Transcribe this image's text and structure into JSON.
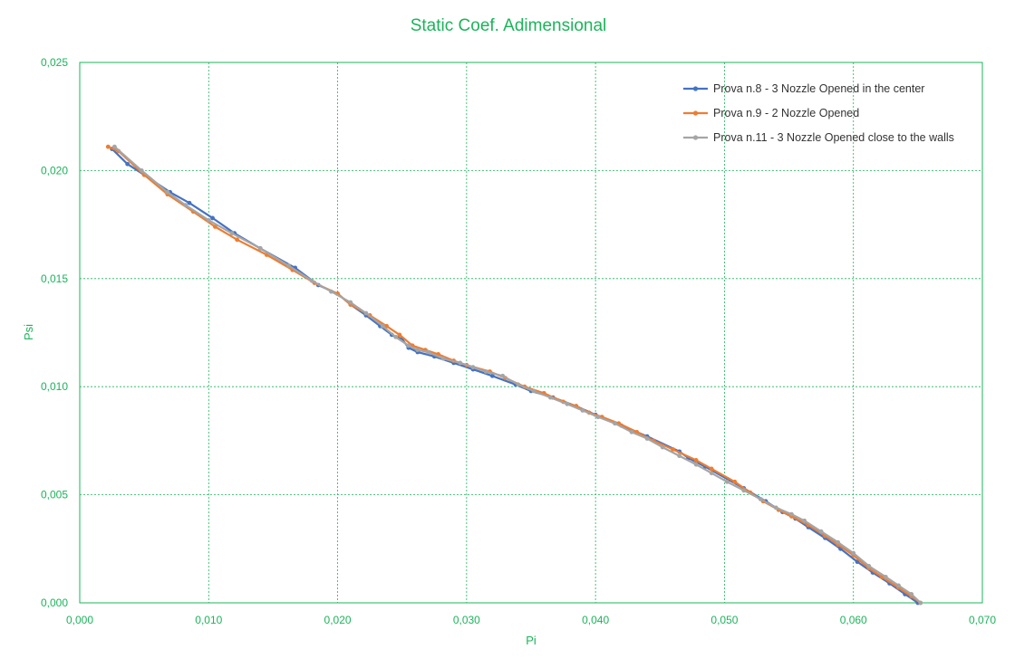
{
  "chart_data": {
    "type": "line",
    "title": "Static Coef. Adimensional",
    "xlabel": "Pi",
    "ylabel": "Psi",
    "xlim": [
      0,
      0.07
    ],
    "ylim": [
      0,
      0.025
    ],
    "x_ticks": [
      "0,000",
      "0,010",
      "0,020",
      "0,030",
      "0,040",
      "0,050",
      "0,060",
      "0,070"
    ],
    "y_ticks": [
      "0,000",
      "0,005",
      "0,010",
      "0,015",
      "0,020",
      "0,025"
    ],
    "x_tick_values": [
      0,
      0.01,
      0.02,
      0.03,
      0.04,
      0.05,
      0.06,
      0.07
    ],
    "y_tick_values": [
      0,
      0.005,
      0.01,
      0.015,
      0.02,
      0.025
    ],
    "grid": true,
    "legend_position": "top-right",
    "colors": {
      "axis": "#1bb45a",
      "grid": "#1bb45a",
      "title": "#1bb45a"
    },
    "series": [
      {
        "name": "Prova n.8 - 3 Nozzle Opened in the center",
        "color": "#4472c4",
        "x": [
          0.0025,
          0.0037,
          0.005,
          0.007,
          0.0085,
          0.0103,
          0.012,
          0.014,
          0.0167,
          0.0185,
          0.02,
          0.021,
          0.0222,
          0.0233,
          0.0242,
          0.025,
          0.0255,
          0.0262,
          0.0275,
          0.029,
          0.0305,
          0.032,
          0.0338,
          0.035,
          0.0367,
          0.0385,
          0.04,
          0.042,
          0.044,
          0.0465,
          0.0472,
          0.0485,
          0.0503,
          0.0515,
          0.0532,
          0.0545,
          0.0555,
          0.0565,
          0.0578,
          0.059,
          0.0603,
          0.0615,
          0.0628,
          0.064,
          0.065
        ],
        "y": [
          0.021,
          0.0203,
          0.0198,
          0.019,
          0.0185,
          0.0178,
          0.0171,
          0.0164,
          0.0155,
          0.0147,
          0.0143,
          0.0138,
          0.0133,
          0.0128,
          0.0124,
          0.0122,
          0.0118,
          0.0116,
          0.0114,
          0.0111,
          0.0108,
          0.0105,
          0.0101,
          0.0098,
          0.0095,
          0.0091,
          0.0087,
          0.0082,
          0.0077,
          0.007,
          0.0067,
          0.0063,
          0.0057,
          0.0053,
          0.0047,
          0.0042,
          0.0039,
          0.0035,
          0.003,
          0.0025,
          0.0019,
          0.0014,
          0.0009,
          0.0004,
          0.0
        ]
      },
      {
        "name": "Prova n.9 - 2 Nozzle Opened",
        "color": "#ed7d31",
        "x": [
          0.0022,
          0.003,
          0.005,
          0.0068,
          0.0088,
          0.0105,
          0.0122,
          0.0145,
          0.0165,
          0.0182,
          0.02,
          0.021,
          0.0225,
          0.0238,
          0.0248,
          0.0258,
          0.0268,
          0.0278,
          0.029,
          0.03,
          0.0318,
          0.033,
          0.0345,
          0.036,
          0.0375,
          0.0385,
          0.0395,
          0.0405,
          0.0418,
          0.0432,
          0.0445,
          0.046,
          0.0478,
          0.049,
          0.0508,
          0.052,
          0.053,
          0.0542,
          0.0552,
          0.0565,
          0.0578,
          0.0588,
          0.06,
          0.0612,
          0.0622,
          0.0635,
          0.0645,
          0.0652
        ],
        "y": [
          0.0211,
          0.0209,
          0.0198,
          0.0189,
          0.0181,
          0.0174,
          0.0168,
          0.0161,
          0.0154,
          0.0148,
          0.0143,
          0.0138,
          0.0133,
          0.0128,
          0.0124,
          0.0119,
          0.0117,
          0.0115,
          0.0112,
          0.011,
          0.0107,
          0.0104,
          0.01,
          0.0097,
          0.0093,
          0.0091,
          0.0088,
          0.0086,
          0.0083,
          0.0079,
          0.0075,
          0.0071,
          0.0066,
          0.0062,
          0.0056,
          0.0051,
          0.0047,
          0.0043,
          0.004,
          0.0036,
          0.0031,
          0.0027,
          0.0022,
          0.0016,
          0.0012,
          0.0007,
          0.0003,
          0.0
        ]
      },
      {
        "name": "Prova n.11 - 3 Nozzle Opened close to the walls",
        "color": "#a5a5a5",
        "x": [
          0.0027,
          0.0048,
          0.0068,
          0.0082,
          0.01,
          0.0118,
          0.014,
          0.0162,
          0.018,
          0.0195,
          0.021,
          0.0222,
          0.0235,
          0.0245,
          0.0255,
          0.0262,
          0.027,
          0.0282,
          0.0295,
          0.0305,
          0.0315,
          0.0328,
          0.034,
          0.0352,
          0.0365,
          0.0378,
          0.039,
          0.0402,
          0.0415,
          0.0428,
          0.044,
          0.0452,
          0.0465,
          0.0478,
          0.049,
          0.0502,
          0.0515,
          0.0528,
          0.054,
          0.0552,
          0.0562,
          0.0575,
          0.0588,
          0.06,
          0.0612,
          0.0625,
          0.0635,
          0.0645,
          0.0652
        ],
        "y": [
          0.0211,
          0.02,
          0.019,
          0.0184,
          0.0177,
          0.0171,
          0.0164,
          0.0156,
          0.0149,
          0.0144,
          0.0139,
          0.0134,
          0.0128,
          0.0123,
          0.0119,
          0.0117,
          0.0116,
          0.0113,
          0.0111,
          0.0109,
          0.0107,
          0.0105,
          0.0101,
          0.0098,
          0.0095,
          0.0092,
          0.0089,
          0.0086,
          0.0083,
          0.0079,
          0.0076,
          0.0072,
          0.0068,
          0.0064,
          0.006,
          0.0056,
          0.0052,
          0.0048,
          0.0044,
          0.0041,
          0.0038,
          0.0033,
          0.0028,
          0.0023,
          0.0017,
          0.0012,
          0.0008,
          0.0004,
          0.0
        ]
      }
    ]
  }
}
